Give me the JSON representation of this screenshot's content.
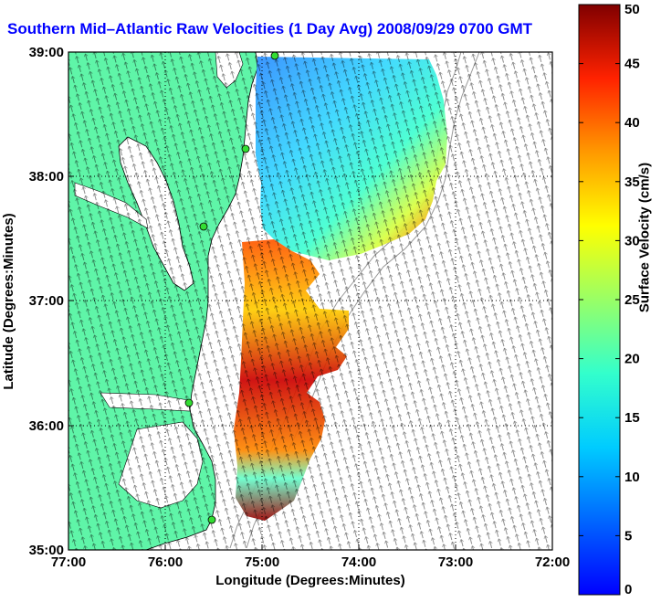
{
  "title": "Southern Mid–Atlantic Raw Velocities (1 Day Avg) 2008/09/29 0700 GMT",
  "x_axis": {
    "label": "Longitude (Degrees:Minutes)",
    "ticks": [
      "77:00",
      "76:00",
      "75:00",
      "74:00",
      "73:00",
      "72:00"
    ]
  },
  "y_axis": {
    "label": "Latitude (Degrees:Minutes)",
    "ticks": [
      "39:00",
      "38:00",
      "37:00",
      "36:00",
      "35:00"
    ]
  },
  "colorbar": {
    "label": "Surface Velocity (cm/s)",
    "ticks": [
      "50",
      "45",
      "40",
      "35",
      "30",
      "25",
      "20",
      "15",
      "10",
      "5",
      "0"
    ],
    "min": 0,
    "max": 50
  },
  "colors": {
    "land": "#5ff5a8",
    "title": "#0000ff",
    "station": "#33dd33"
  },
  "chart_data": {
    "type": "heatmap",
    "lon_range": [
      -77,
      -72
    ],
    "lat_range": [
      35,
      39
    ],
    "grid": true,
    "velocity_units": "cm/s",
    "velocity_range": [
      0,
      50
    ]
  }
}
